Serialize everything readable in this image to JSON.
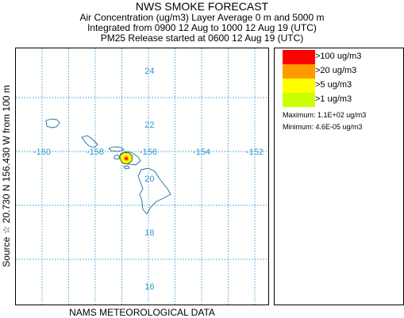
{
  "title": "NWS SMOKE FORECAST",
  "subtitle_lines": [
    "Air Concentration (ug/m3) Layer Average    0 m and  5000 m",
    "Integrated from 0900 12 Aug to 1000 12 Aug 19 (UTC)",
    "PM25 Release started at 0600 12 Aug 19 (UTC)"
  ],
  "side_label": "Source ☆ 20.730 N 156.430 W   from  100 m",
  "bottom_label": "NAMS METEOROLOGICAL DATA",
  "legend": {
    "entries": [
      {
        "label": ">100 ug/m3",
        "color": "#ff0000"
      },
      {
        "label": ">20 ug/m3",
        "color": "#ff9900"
      },
      {
        "label": ">5 ug/m3",
        "color": "#ffff00"
      },
      {
        "label": ">1 ug/m3",
        "color": "#ccff00"
      }
    ],
    "maximum": "Maximum: 1.1E+02 ug/m3",
    "minimum": "Minimum: 4.6E-05 ug/m3"
  },
  "map": {
    "longitude_labels": [
      "-160",
      "-158",
      "-156",
      "-154",
      "-152"
    ],
    "latitude_labels": [
      "24",
      "22",
      "20",
      "18",
      "16"
    ],
    "grid_color": "#3399cc",
    "coast_color": "#1a6ea0",
    "source_marker": "star-icon",
    "source_lat": 20.73,
    "source_lon": -156.43
  }
}
